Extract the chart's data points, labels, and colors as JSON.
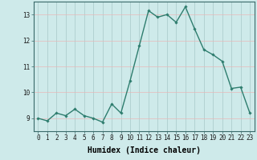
{
  "x": [
    0,
    1,
    2,
    3,
    4,
    5,
    6,
    7,
    8,
    9,
    10,
    11,
    12,
    13,
    14,
    15,
    16,
    17,
    18,
    19,
    20,
    21,
    22,
    23
  ],
  "y": [
    9.0,
    8.9,
    9.2,
    9.1,
    9.35,
    9.1,
    9.0,
    8.85,
    9.55,
    9.2,
    10.45,
    11.8,
    13.15,
    12.9,
    13.0,
    12.7,
    13.3,
    12.45,
    11.65,
    11.45,
    11.2,
    10.15,
    10.2,
    9.2
  ],
  "line_color": "#2e7d6e",
  "marker": "D",
  "marker_size": 1.8,
  "line_width": 1.0,
  "bg_color": "#ceeaea",
  "grid_color_x": "#a8c8c8",
  "grid_color_y": "#e8b8b8",
  "xlabel": "Humidex (Indice chaleur)",
  "xlabel_fontsize": 7,
  "xlim": [
    -0.5,
    23.5
  ],
  "ylim": [
    8.5,
    13.5
  ],
  "yticks": [
    9,
    10,
    11,
    12,
    13
  ],
  "xticks": [
    0,
    1,
    2,
    3,
    4,
    5,
    6,
    7,
    8,
    9,
    10,
    11,
    12,
    13,
    14,
    15,
    16,
    17,
    18,
    19,
    20,
    21,
    22,
    23
  ],
  "tick_fontsize": 5.5
}
